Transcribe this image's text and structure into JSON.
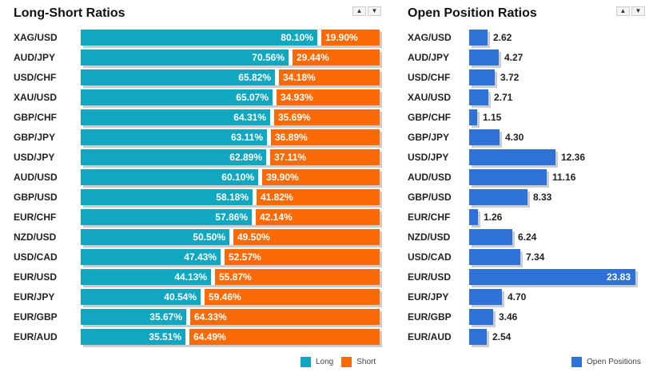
{
  "long_short": {
    "title": "Long-Short Ratios",
    "sort_up_label": "▲",
    "sort_down_label": "▼",
    "legend": {
      "long": "Long",
      "short": "Short"
    },
    "colors": {
      "long": "#11a7c0",
      "short": "#fb6a06"
    }
  },
  "open_positions": {
    "title": "Open Position Ratios",
    "sort_up_label": "▲",
    "sort_down_label": "▼",
    "legend": {
      "open": "Open Positions"
    },
    "colors": {
      "bar": "#2e72d8"
    }
  },
  "chart_data": [
    {
      "type": "bar",
      "stacked": true,
      "orientation": "horizontal",
      "title": "Long-Short Ratios",
      "categories": [
        "XAG/USD",
        "AUD/JPY",
        "USD/CHF",
        "XAU/USD",
        "GBP/CHF",
        "GBP/JPY",
        "USD/JPY",
        "AUD/USD",
        "GBP/USD",
        "EUR/CHF",
        "NZD/USD",
        "USD/CAD",
        "EUR/USD",
        "EUR/JPY",
        "EUR/GBP",
        "EUR/AUD"
      ],
      "series": [
        {
          "name": "Long",
          "values": [
            80.1,
            70.56,
            65.82,
            65.07,
            64.31,
            63.11,
            62.89,
            60.1,
            58.18,
            57.86,
            50.5,
            47.43,
            44.13,
            40.54,
            35.67,
            35.51
          ],
          "labels": [
            "80.10%",
            "70.56%",
            "65.82%",
            "65.07%",
            "64.31%",
            "63.11%",
            "62.89%",
            "60.10%",
            "58.18%",
            "57.86%",
            "50.50%",
            "47.43%",
            "44.13%",
            "40.54%",
            "35.67%",
            "35.51%"
          ]
        },
        {
          "name": "Short",
          "values": [
            19.9,
            29.44,
            34.18,
            34.93,
            35.69,
            36.89,
            37.11,
            39.9,
            41.82,
            42.14,
            49.5,
            52.57,
            55.87,
            59.46,
            64.33,
            64.49
          ],
          "labels": [
            "19.90%",
            "29.44%",
            "34.18%",
            "34.93%",
            "35.69%",
            "36.89%",
            "37.11%",
            "39.90%",
            "41.82%",
            "42.14%",
            "49.50%",
            "52.57%",
            "55.87%",
            "59.46%",
            "64.33%",
            "64.49%"
          ]
        }
      ],
      "xlim": [
        0,
        100
      ],
      "legend_position": "bottom-right",
      "grid": false
    },
    {
      "type": "bar",
      "orientation": "horizontal",
      "title": "Open Position Ratios",
      "categories": [
        "XAG/USD",
        "AUD/JPY",
        "USD/CHF",
        "XAU/USD",
        "GBP/CHF",
        "GBP/JPY",
        "USD/JPY",
        "AUD/USD",
        "GBP/USD",
        "EUR/CHF",
        "NZD/USD",
        "USD/CAD",
        "EUR/USD",
        "EUR/JPY",
        "EUR/GBP",
        "EUR/AUD"
      ],
      "series": [
        {
          "name": "Open Positions",
          "values": [
            2.62,
            4.27,
            3.72,
            2.71,
            1.15,
            4.3,
            12.36,
            11.16,
            8.33,
            1.26,
            6.24,
            7.34,
            23.83,
            4.7,
            3.46,
            2.54
          ],
          "labels": [
            "2.62",
            "4.27",
            "3.72",
            "2.71",
            "1.15",
            "4.30",
            "12.36",
            "11.16",
            "8.33",
            "1.26",
            "6.24",
            "7.34",
            "23.83",
            "4.70",
            "3.46",
            "2.54"
          ]
        }
      ],
      "xlim": [
        0,
        23.83
      ],
      "legend_position": "bottom-right",
      "grid": false
    }
  ]
}
